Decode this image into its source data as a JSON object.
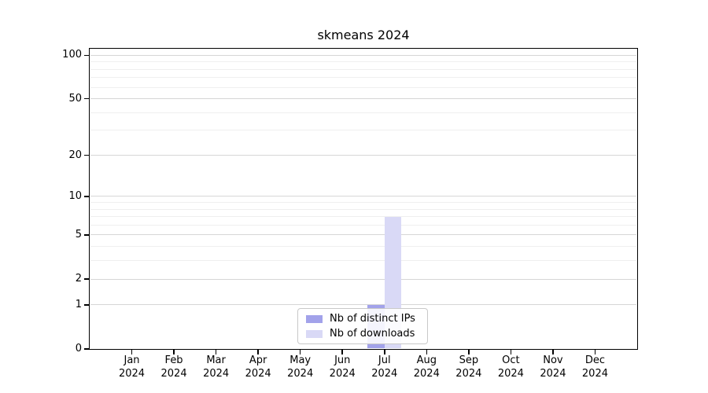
{
  "chart_data": {
    "type": "bar",
    "title": "skmeans 2024",
    "categories": [
      "Jan",
      "Feb",
      "Mar",
      "Apr",
      "May",
      "Jun",
      "Jul",
      "Aug",
      "Sep",
      "Oct",
      "Nov",
      "Dec"
    ],
    "year_label": "2024",
    "series": [
      {
        "name": "Nb of distinct IPs",
        "color": "#a2a2ea",
        "values": [
          0,
          0,
          0,
          0,
          0,
          0,
          1,
          0,
          0,
          0,
          0,
          0
        ]
      },
      {
        "name": "Nb of downloads",
        "color": "#d9d9f6",
        "values": [
          0,
          0,
          0,
          0,
          0,
          0,
          7,
          0,
          0,
          0,
          0,
          0
        ]
      }
    ],
    "xlabel": "",
    "ylabel": "",
    "yscale": "log1p",
    "ylim": [
      0,
      111
    ],
    "yticks": [
      0,
      1,
      2,
      5,
      10,
      20,
      50,
      100
    ],
    "yticks_minor": [
      3,
      4,
      6,
      7,
      8,
      9,
      30,
      40,
      60,
      70,
      80,
      90
    ],
    "grid": true,
    "legend_position": "lower center",
    "colors": {
      "background": "#ffffff",
      "spine": "#000000",
      "grid_major": "#d6d6d6",
      "grid_minor": "#efefef",
      "legend_border": "#c9c9c9",
      "text": "#000000"
    }
  }
}
